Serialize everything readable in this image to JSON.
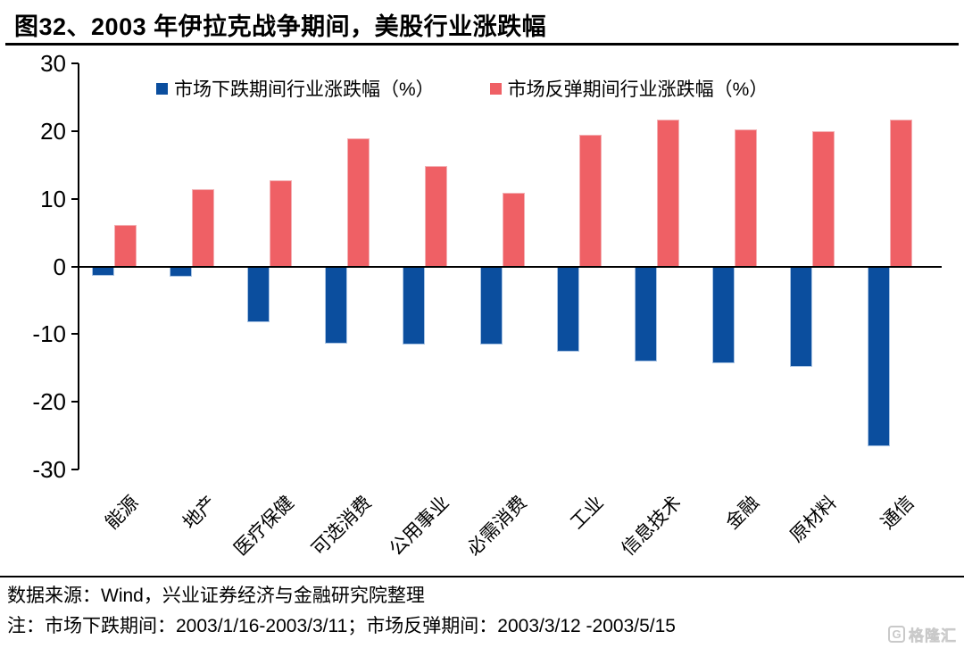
{
  "page": {
    "title": "图32、2003 年伊拉克战争期间，美股行业涨跌幅",
    "source_line": "数据来源：Wind，兴业证券经济与金融研究院整理",
    "note_line": "注：市场下跌期间：2003/1/16-2003/3/11；市场反弹期间：2003/3/12 -2003/5/15",
    "watermark_text": "格隆汇",
    "watermark_logo": "G"
  },
  "chart_data": {
    "type": "bar",
    "title": "图32、2003 年伊拉克战争期间，美股行业涨跌幅",
    "categories": [
      "能源",
      "地产",
      "医疗保健",
      "可选消费",
      "公用事业",
      "必需消费",
      "工业",
      "信息技术",
      "金融",
      "原材料",
      "通信"
    ],
    "series": [
      {
        "name": "市场下跌期间行业涨跌幅（%）",
        "color": "#0b4e9e",
        "values": [
          -1.4,
          -1.5,
          -8.3,
          -11.4,
          -11.6,
          -11.6,
          -12.6,
          -14.1,
          -14.3,
          -14.9,
          -26.6
        ]
      },
      {
        "name": "市场反弹期间行业涨跌幅（%）",
        "color": "#ef6065",
        "values": [
          6.1,
          11.4,
          12.7,
          18.9,
          14.8,
          10.9,
          19.5,
          21.7,
          20.3,
          20.0,
          21.7
        ]
      }
    ],
    "xlabel": "",
    "ylabel": "",
    "ylim": [
      -30,
      30
    ],
    "yticks": [
      30,
      20,
      10,
      0,
      -10,
      -20,
      -30
    ],
    "grid": false,
    "legend_position": "top"
  }
}
